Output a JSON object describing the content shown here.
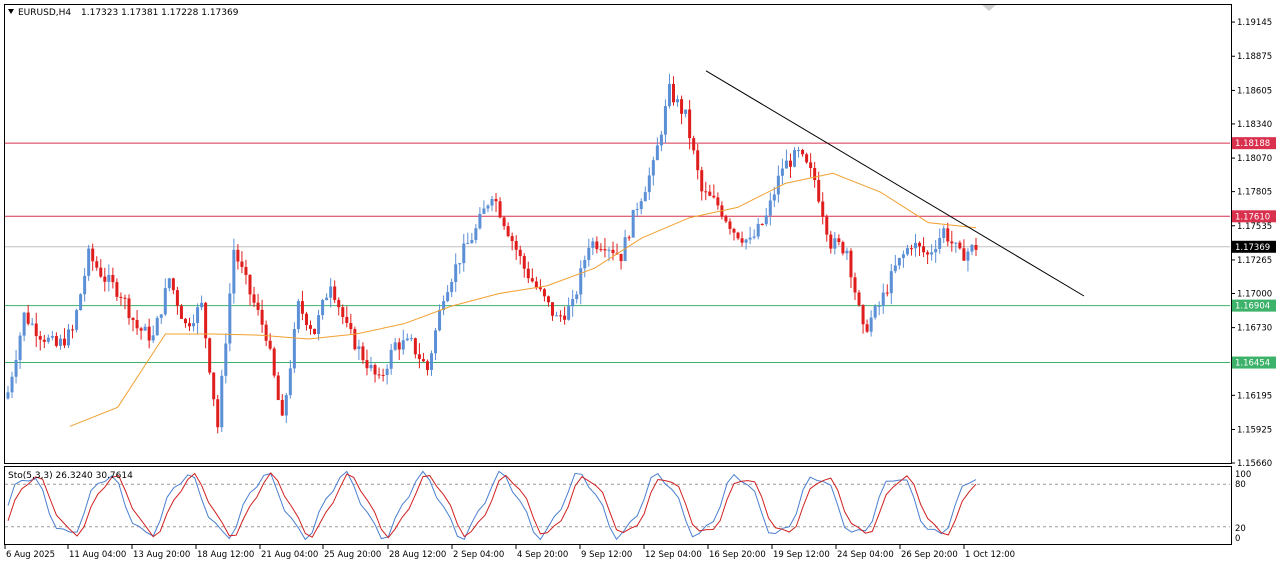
{
  "header": {
    "symbol": "EURUSD,H4",
    "ohlc": "1.17323 1.17381 1.17228 1.17369"
  },
  "stochastic": {
    "label": "Sto(5,3,3) 26.3240 30.7614",
    "levels": [
      80,
      20
    ],
    "axis_labels": [
      "100",
      "80",
      "20",
      "0"
    ]
  },
  "price_axis": {
    "ticks": [
      "1.19145",
      "1.18875",
      "1.18605",
      "1.18340",
      "1.18070",
      "1.17805",
      "1.17535",
      "1.17265",
      "1.17000",
      "1.16730",
      "1.16460",
      "1.16195",
      "1.15925",
      "1.15660"
    ]
  },
  "level_lines": [
    {
      "label": "1.18188",
      "price": 1.18188,
      "color": "#d9304e"
    },
    {
      "label": "1.17610",
      "price": 1.1761,
      "color": "#d9304e"
    },
    {
      "label": "1.16904",
      "price": 1.16904,
      "color": "#3cb26a"
    },
    {
      "label": "1.16454",
      "price": 1.16454,
      "color": "#3cb26a"
    }
  ],
  "current_price": {
    "label": "1.17369",
    "price": 1.17369
  },
  "time_axis": {
    "labels": [
      "6 Aug 2025",
      "11 Aug 04:00",
      "13 Aug 20:00",
      "18 Aug 12:00",
      "21 Aug 04:00",
      "25 Aug 20:00",
      "28 Aug 12:00",
      "2 Sep 04:00",
      "4 Sep 20:00",
      "9 Sep 12:00",
      "12 Sep 04:00",
      "16 Sep 20:00",
      "19 Sep 12:00",
      "24 Sep 04:00",
      "26 Sep 20:00",
      "1 Oct 12:00"
    ]
  },
  "colors": {
    "bull": "#5b8fd6",
    "bear": "#e01d1d",
    "ma": "#f0a030",
    "sto_main": "#4a7fd0",
    "sto_signal": "#d02020",
    "trendline": "#000000"
  },
  "chart_data": {
    "type": "candlestick",
    "symbol": "EURUSD",
    "timeframe": "H4",
    "ylim": [
      1.1566,
      1.1928
    ],
    "series": [
      {
        "name": "EURUSD,H4",
        "anchor_closes": [
          1.1622,
          1.1683,
          1.1668,
          1.1658,
          1.167,
          1.173,
          1.1712,
          1.17,
          1.1673,
          1.1665,
          1.1712,
          1.1675,
          1.169,
          1.1595,
          1.1735,
          1.17,
          1.1668,
          1.1598,
          1.169,
          1.167,
          1.171,
          1.1672,
          1.165,
          1.163,
          1.166,
          1.166,
          1.164,
          1.17,
          1.1728,
          1.175,
          1.178,
          1.175,
          1.172,
          1.17,
          1.168,
          1.169,
          1.174,
          1.174,
          1.173,
          1.177,
          1.18,
          1.186,
          1.184,
          1.178,
          1.177,
          1.175,
          1.174,
          1.176,
          1.18,
          1.181,
          1.179,
          1.174,
          1.1735,
          1.167,
          1.169,
          1.172,
          1.174,
          1.173,
          1.175,
          1.173,
          1.1737
        ]
      },
      {
        "name": "Moving Average",
        "anchor_values": [
          1.1595,
          1.161,
          1.1668,
          1.1668,
          1.1667,
          1.1664,
          1.1668,
          1.1676,
          1.169,
          1.17,
          1.1706,
          1.172,
          1.1744,
          1.176,
          1.1768,
          1.1787,
          1.1795,
          1.178,
          1.1756,
          1.1752
        ]
      },
      {
        "name": "Sto(5,3,3)",
        "value": 26.324,
        "signal": 30.7614,
        "levels": [
          20,
          80
        ]
      }
    ],
    "horizontal_levels": [
      1.18188,
      1.1761,
      1.16904,
      1.16454
    ],
    "trendline": {
      "from": 1.1876,
      "to": 1.1698
    },
    "x_labels": [
      "6 Aug 2025",
      "11 Aug 04:00",
      "13 Aug 20:00",
      "18 Aug 12:00",
      "21 Aug 04:00",
      "25 Aug 20:00",
      "28 Aug 12:00",
      "2 Sep 04:00",
      "4 Sep 20:00",
      "9 Sep 12:00",
      "12 Sep 04:00",
      "16 Sep 20:00",
      "19 Sep 12:00",
      "24 Sep 04:00",
      "26 Sep 20:00",
      "1 Oct 12:00"
    ]
  }
}
